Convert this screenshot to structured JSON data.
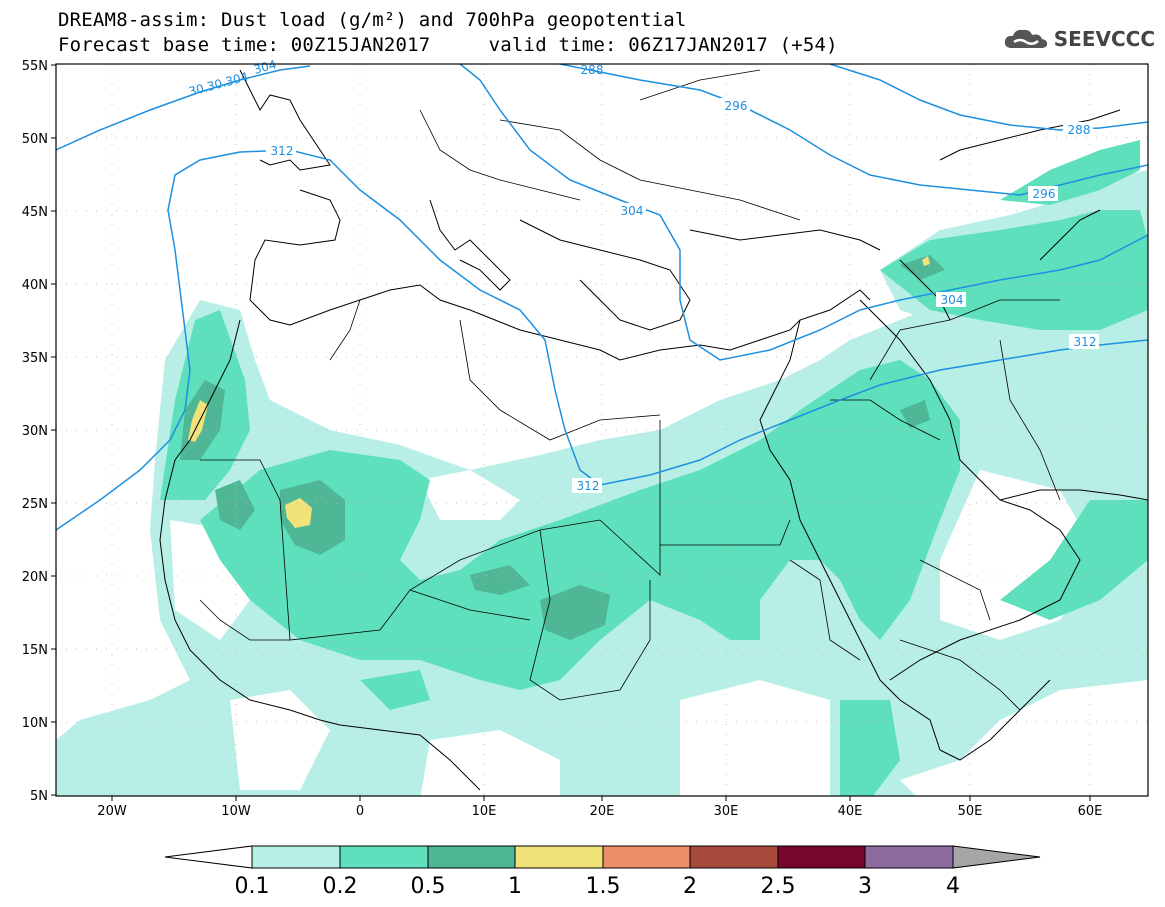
{
  "header": {
    "title_line1": "DREAM8-assim: Dust load (g/m²) and 700hPa geopotential",
    "title_line2": "Forecast base time: 00Z15JAN2017     valid time: 06Z17JAN2017 (+54)"
  },
  "logo": {
    "text": "SEEVCCC",
    "icon": "cloud-icon"
  },
  "axes": {
    "lat_labels": [
      "55N",
      "50N",
      "45N",
      "40N",
      "35N",
      "30N",
      "25N",
      "20N",
      "15N",
      "10N",
      "5N"
    ],
    "lon_labels": [
      "20W",
      "10W",
      "0",
      "10E",
      "20E",
      "30E",
      "40E",
      "50E",
      "60E"
    ]
  },
  "contour_labels": [
    "312",
    "312",
    "312",
    "304",
    "304",
    "296",
    "296",
    "288",
    "288",
    "30.30.304",
    "304"
  ],
  "colorbar": {
    "labels": [
      "0.1",
      "0.2",
      "0.5",
      "1",
      "1.5",
      "2",
      "2.5",
      "3",
      "4"
    ],
    "colors": [
      "#b7efe6",
      "#5ee0bd",
      "#4fb696",
      "#f1e27a",
      "#ea8f6a",
      "#a84a3b",
      "#76062c",
      "#8d6a9f",
      "#a6a6a6"
    ]
  },
  "colors": {
    "contour": "#1e90e0",
    "dust_light": "#b7efe6",
    "dust_mid": "#5ee0bd",
    "dust_dark": "#4fb696",
    "dust_high": "#f1e27a"
  }
}
